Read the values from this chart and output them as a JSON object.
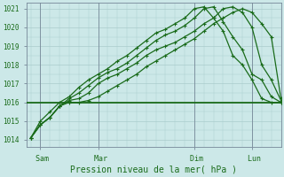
{
  "bg_color": "#cce8e8",
  "grid_color": "#aacccc",
  "line_color": "#1a6b1a",
  "ref_line_color": "#1a6b1a",
  "ylabel_min": 1014,
  "ylabel_max": 1021,
  "xlabel": "Pression niveau de la mer( hPa )",
  "xtick_labels": [
    " Sam",
    " Mar",
    " Dim",
    " Lun"
  ],
  "xtick_positions": [
    0.5,
    3.5,
    8.5,
    11.5
  ],
  "xlim": [
    -0.2,
    13.0
  ],
  "ref_value": 1016.0,
  "line1_x": [
    0,
    0.5,
    1.0,
    1.5,
    2.0,
    2.5,
    3.0,
    3.5,
    4.0,
    4.5,
    5.0,
    5.5,
    6.0,
    6.5,
    7.0,
    7.5,
    8.0,
    8.5,
    9.0,
    9.5,
    10.0,
    10.5,
    11.0,
    11.5,
    12.0,
    12.5,
    13.0
  ],
  "line1_y": [
    1014.1,
    1014.8,
    1015.2,
    1015.8,
    1016.0,
    1016.0,
    1016.1,
    1016.3,
    1016.6,
    1016.9,
    1017.2,
    1017.5,
    1017.9,
    1018.2,
    1018.5,
    1018.8,
    1019.1,
    1019.4,
    1019.8,
    1020.2,
    1020.5,
    1020.8,
    1021.0,
    1020.8,
    1020.2,
    1019.5,
    1016.2
  ],
  "line2_x": [
    0,
    0.5,
    1.0,
    1.5,
    2.0,
    2.5,
    3.0,
    3.5,
    4.0,
    4.5,
    5.0,
    5.5,
    6.0,
    6.5,
    7.0,
    7.5,
    8.0,
    8.5,
    9.0,
    9.5,
    10.0,
    10.5,
    11.0,
    11.5,
    12.0,
    12.5,
    13.0
  ],
  "line2_y": [
    1014.1,
    1014.8,
    1015.2,
    1015.8,
    1016.1,
    1016.2,
    1016.5,
    1017.0,
    1017.3,
    1017.5,
    1017.8,
    1018.1,
    1018.5,
    1018.8,
    1019.0,
    1019.2,
    1019.5,
    1019.8,
    1020.2,
    1020.5,
    1021.0,
    1021.1,
    1020.8,
    1020.0,
    1018.0,
    1017.2,
    1016.1
  ],
  "line3_x": [
    0,
    0.5,
    1.0,
    1.5,
    2.0,
    2.5,
    3.0,
    3.5,
    4.0,
    4.5,
    5.0,
    5.5,
    6.0,
    6.5,
    7.0,
    7.5,
    8.0,
    8.5,
    9.0,
    9.5,
    10.0,
    10.5,
    11.0,
    11.5,
    12.0,
    12.5,
    13.0
  ],
  "line3_y": [
    1014.1,
    1014.8,
    1015.2,
    1015.8,
    1016.2,
    1016.5,
    1016.9,
    1017.3,
    1017.6,
    1017.8,
    1018.1,
    1018.5,
    1018.9,
    1019.3,
    1019.6,
    1019.8,
    1020.1,
    1020.5,
    1021.0,
    1021.1,
    1020.3,
    1019.5,
    1018.8,
    1017.5,
    1017.2,
    1016.3,
    1016.0
  ],
  "line4_x": [
    0,
    0.5,
    1.0,
    1.5,
    2.0,
    2.5,
    3.0,
    3.5,
    4.0,
    4.5,
    5.0,
    5.5,
    6.0,
    6.5,
    7.0,
    7.5,
    8.0,
    8.5,
    9.0,
    9.5,
    10.0,
    10.5,
    11.0,
    11.5,
    12.0,
    12.5,
    13.0
  ],
  "line4_y": [
    1014.1,
    1015.0,
    1015.5,
    1016.0,
    1016.3,
    1016.8,
    1017.2,
    1017.5,
    1017.8,
    1018.2,
    1018.5,
    1018.9,
    1019.3,
    1019.7,
    1019.9,
    1020.2,
    1020.5,
    1021.0,
    1021.1,
    1020.5,
    1019.8,
    1018.5,
    1018.0,
    1017.2,
    1016.2,
    1016.0,
    1016.0
  ]
}
